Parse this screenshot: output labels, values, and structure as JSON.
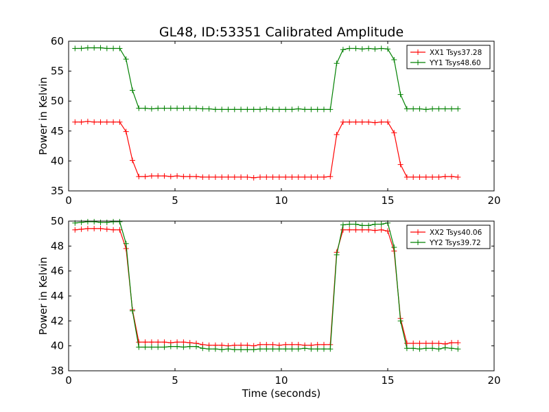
{
  "title": "GL48, ID:53351 Calibrated Amplitude",
  "colors": {
    "xx": "#ff0000",
    "yy": "#008000",
    "axes": "#000000",
    "background": "#ffffff"
  },
  "chart_data": [
    {
      "type": "line",
      "ylabel": "Power in Kelvin",
      "xlabel": "",
      "xlim": [
        0,
        20
      ],
      "ylim": [
        35,
        60
      ],
      "xticks": [
        0,
        5,
        10,
        15,
        20
      ],
      "yticks": [
        35,
        40,
        45,
        50,
        55,
        60
      ],
      "grid": false,
      "legend_position": "top-right",
      "x": [
        0.3,
        0.6,
        0.9,
        1.2,
        1.5,
        1.8,
        2.1,
        2.4,
        2.7,
        3.0,
        3.3,
        3.6,
        3.9,
        4.2,
        4.5,
        4.8,
        5.1,
        5.4,
        5.7,
        6.0,
        6.3,
        6.6,
        6.9,
        7.2,
        7.5,
        7.8,
        8.1,
        8.4,
        8.7,
        9.0,
        9.3,
        9.6,
        9.9,
        10.2,
        10.5,
        10.8,
        11.1,
        11.4,
        11.7,
        12.0,
        12.3,
        12.6,
        12.9,
        13.2,
        13.5,
        13.8,
        14.1,
        14.4,
        14.7,
        15.0,
        15.3,
        15.6,
        15.9,
        16.2,
        16.5,
        16.8,
        17.1,
        17.4,
        17.7,
        18.0,
        18.3
      ],
      "series": [
        {
          "name": "XX1 Tsys37.28",
          "color": "#ff0000",
          "values": [
            46.5,
            46.5,
            46.6,
            46.5,
            46.5,
            46.5,
            46.5,
            46.5,
            44.9,
            40.1,
            37.4,
            37.4,
            37.5,
            37.5,
            37.5,
            37.4,
            37.5,
            37.4,
            37.4,
            37.4,
            37.3,
            37.3,
            37.3,
            37.3,
            37.3,
            37.3,
            37.3,
            37.3,
            37.2,
            37.3,
            37.3,
            37.3,
            37.3,
            37.3,
            37.3,
            37.3,
            37.3,
            37.3,
            37.3,
            37.3,
            37.4,
            44.4,
            46.5,
            46.5,
            46.5,
            46.5,
            46.5,
            46.4,
            46.5,
            46.5,
            44.7,
            39.4,
            37.3,
            37.3,
            37.3,
            37.3,
            37.3,
            37.3,
            37.4,
            37.4,
            37.3
          ]
        },
        {
          "name": "YY1 Tsys48.60",
          "color": "#008000",
          "values": [
            58.8,
            58.8,
            58.9,
            58.9,
            58.9,
            58.8,
            58.8,
            58.8,
            57.0,
            51.8,
            48.8,
            48.8,
            48.7,
            48.8,
            48.8,
            48.8,
            48.8,
            48.8,
            48.8,
            48.8,
            48.7,
            48.7,
            48.6,
            48.6,
            48.6,
            48.6,
            48.6,
            48.6,
            48.6,
            48.6,
            48.7,
            48.6,
            48.6,
            48.6,
            48.6,
            48.7,
            48.6,
            48.6,
            48.6,
            48.6,
            48.6,
            56.3,
            58.6,
            58.8,
            58.8,
            58.7,
            58.8,
            58.7,
            58.8,
            58.7,
            56.9,
            51.1,
            48.7,
            48.7,
            48.7,
            48.6,
            48.7,
            48.7,
            48.7,
            48.7,
            48.7
          ]
        }
      ]
    },
    {
      "type": "line",
      "ylabel": "Power in Kelvin",
      "xlabel": "Time (seconds)",
      "xlim": [
        0,
        20
      ],
      "ylim": [
        38,
        50
      ],
      "xticks": [
        0,
        5,
        10,
        15,
        20
      ],
      "yticks": [
        38,
        40,
        42,
        44,
        46,
        48,
        50
      ],
      "grid": false,
      "legend_position": "top-right",
      "x": [
        0.3,
        0.6,
        0.9,
        1.2,
        1.5,
        1.8,
        2.1,
        2.4,
        2.7,
        3.0,
        3.3,
        3.6,
        3.9,
        4.2,
        4.5,
        4.8,
        5.1,
        5.4,
        5.7,
        6.0,
        6.3,
        6.6,
        6.9,
        7.2,
        7.5,
        7.8,
        8.1,
        8.4,
        8.7,
        9.0,
        9.3,
        9.6,
        9.9,
        10.2,
        10.5,
        10.8,
        11.1,
        11.4,
        11.7,
        12.0,
        12.3,
        12.6,
        12.9,
        13.2,
        13.5,
        13.8,
        14.1,
        14.4,
        14.7,
        15.0,
        15.3,
        15.6,
        15.9,
        16.2,
        16.5,
        16.8,
        17.1,
        17.4,
        17.7,
        18.0,
        18.3
      ],
      "series": [
        {
          "name": "XX2 Tsys40.06",
          "color": "#ff0000",
          "values": [
            49.3,
            49.35,
            49.4,
            49.4,
            49.4,
            49.35,
            49.3,
            49.3,
            47.8,
            42.9,
            40.3,
            40.3,
            40.3,
            40.3,
            40.3,
            40.25,
            40.3,
            40.3,
            40.25,
            40.2,
            40.1,
            40.05,
            40.05,
            40.05,
            40.0,
            40.05,
            40.05,
            40.05,
            40.0,
            40.1,
            40.1,
            40.1,
            40.05,
            40.1,
            40.1,
            40.1,
            40.05,
            40.05,
            40.1,
            40.1,
            40.1,
            47.5,
            49.3,
            49.3,
            49.3,
            49.3,
            49.3,
            49.25,
            49.3,
            49.2,
            47.6,
            42.2,
            40.2,
            40.2,
            40.2,
            40.2,
            40.2,
            40.2,
            40.15,
            40.25,
            40.25
          ]
        },
        {
          "name": "YY2 Tsys39.72",
          "color": "#008000",
          "values": [
            49.85,
            49.9,
            49.95,
            49.95,
            49.9,
            49.9,
            49.95,
            49.95,
            48.2,
            42.8,
            39.9,
            39.9,
            39.9,
            39.9,
            39.9,
            39.95,
            39.95,
            39.9,
            39.95,
            39.95,
            39.8,
            39.75,
            39.75,
            39.7,
            39.75,
            39.7,
            39.7,
            39.7,
            39.7,
            39.75,
            39.75,
            39.75,
            39.75,
            39.75,
            39.75,
            39.75,
            39.8,
            39.75,
            39.75,
            39.75,
            39.75,
            47.3,
            49.7,
            49.75,
            49.75,
            49.65,
            49.65,
            49.75,
            49.75,
            49.85,
            47.9,
            42.0,
            39.8,
            39.8,
            39.75,
            39.8,
            39.8,
            39.75,
            39.85,
            39.8,
            39.75
          ]
        }
      ]
    }
  ]
}
